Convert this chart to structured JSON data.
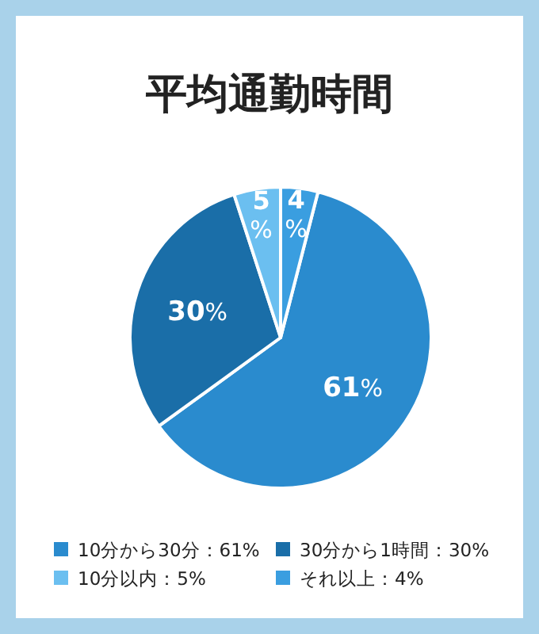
{
  "chart_data": {
    "type": "pie",
    "title": "平均通勤時間",
    "categories": [
      "10分から30分：61%",
      "30分から1時間：30%",
      "10分以内：5%",
      "それ以上：4%"
    ],
    "values": [
      61,
      30,
      5,
      4
    ],
    "value_labels": [
      "61%",
      "30%",
      "5%",
      "4%"
    ],
    "colors": [
      "#2a8bce",
      "#1a6ea8",
      "#6bbff0",
      "#3a9ee0"
    ],
    "legend": "bottom"
  }
}
